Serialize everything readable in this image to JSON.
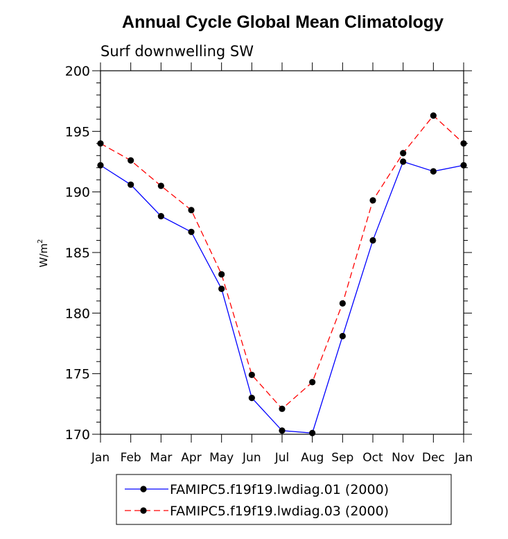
{
  "chart_data": {
    "type": "line",
    "title": "Annual Cycle Global Mean Climatology",
    "subtitle": "Surf downwelling SW",
    "ylabel": "W/m",
    "ylabel_superscript": "2",
    "xlabel": "",
    "categories": [
      "Jan",
      "Feb",
      "Mar",
      "Apr",
      "May",
      "Jun",
      "Jul",
      "Aug",
      "Sep",
      "Oct",
      "Nov",
      "Dec",
      "Jan"
    ],
    "ylim": [
      170,
      200
    ],
    "yticks": [
      "170",
      "175",
      "180",
      "185",
      "190",
      "195",
      "200"
    ],
    "legend_position": "bottom",
    "series": [
      {
        "name": "FAMIPC5.f19f19.lwdiag.01 (2000)",
        "color": "#0000ff",
        "dash": "solid",
        "values": [
          192.2,
          190.6,
          188.0,
          186.7,
          182.0,
          173.0,
          170.3,
          170.1,
          178.1,
          186.0,
          192.5,
          191.7,
          192.2
        ]
      },
      {
        "name": "FAMIPC5.f19f19.lwdiag.03 (2000)",
        "color": "#ff0000",
        "dash": "dashed",
        "values": [
          194.0,
          192.6,
          190.5,
          188.5,
          183.2,
          174.9,
          172.1,
          174.3,
          180.8,
          189.3,
          193.2,
          196.3,
          194.0
        ]
      }
    ]
  }
}
